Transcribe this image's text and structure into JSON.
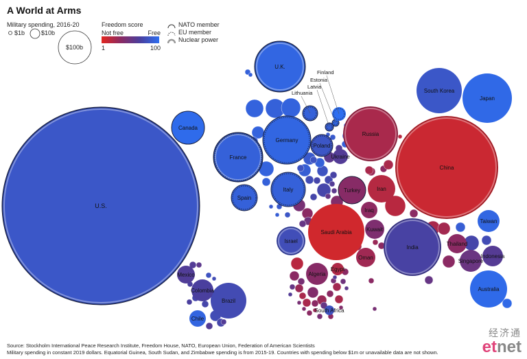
{
  "title": "A World at Arms",
  "legend": {
    "size_title": "Military spending, 2016-20",
    "size_labels": [
      "$1b",
      "$10b",
      "$100b"
    ],
    "freedom_title": "Freedom score",
    "freedom_low": "Not free",
    "freedom_high": "Free",
    "freedom_min": "1",
    "freedom_max": "100",
    "markers": [
      "NATO member",
      "EU member",
      "Nuclear power"
    ]
  },
  "colors": {
    "not_free": "#e2271f",
    "free": "#2d6ef0"
  },
  "chart_data": {
    "type": "bubble",
    "title": "A World at Arms",
    "size_measure": "Military spending, 2016-20 (constant 2019 dollars)",
    "color_measure": "Freedom score (1 = Not free, 100 = Free)",
    "countries": [
      {
        "name": "U.S.",
        "spending_b": 3600,
        "freedom": 83,
        "nato": true,
        "nuclear": true
      },
      {
        "name": "China",
        "spending_b": 1200,
        "freedom": 9,
        "nuclear": true
      },
      {
        "name": "India",
        "spending_b": 340,
        "freedom": 67,
        "nuclear": true
      },
      {
        "name": "Russia",
        "spending_b": 320,
        "freedom": 20,
        "nuclear": true
      },
      {
        "name": "Saudi Arabia",
        "spending_b": 320,
        "freedom": 7
      },
      {
        "name": "U.K.",
        "spending_b": 270,
        "freedom": 94,
        "nato": true,
        "nuclear": true
      },
      {
        "name": "Germany",
        "spending_b": 240,
        "freedom": 94,
        "nato": true,
        "eu": true
      },
      {
        "name": "France",
        "spending_b": 260,
        "freedom": 90,
        "nato": true,
        "eu": true,
        "nuclear": true
      },
      {
        "name": "Japan",
        "spending_b": 240,
        "freedom": 96
      },
      {
        "name": "South Korea",
        "spending_b": 210,
        "freedom": 83
      },
      {
        "name": "Italy",
        "spending_b": 130,
        "freedom": 90,
        "nato": true,
        "eu": true
      },
      {
        "name": "Australia",
        "spending_b": 130,
        "freedom": 97
      },
      {
        "name": "Brazil",
        "spending_b": 130,
        "freedom": 74
      },
      {
        "name": "Canada",
        "spending_b": 105,
        "freedom": 98,
        "nato": true
      },
      {
        "name": "Israel",
        "spending_b": 100,
        "freedom": 76,
        "nuclear": true
      },
      {
        "name": "Turkey",
        "spending_b": 90,
        "freedom": 32,
        "nato": true
      },
      {
        "name": "Spain",
        "spending_b": 75,
        "freedom": 90,
        "nato": true,
        "eu": true
      },
      {
        "name": "Iran",
        "spending_b": 75,
        "freedom": 16
      },
      {
        "name": "Indonesia",
        "spending_b": 40,
        "freedom": 59
      },
      {
        "name": "Poland",
        "spending_b": 55,
        "freedom": 82,
        "nato": true,
        "eu": true
      },
      {
        "name": "Singapore",
        "spending_b": 55,
        "freedom": 48
      },
      {
        "name": "Algeria",
        "spending_b": 50,
        "freedom": 32
      },
      {
        "name": "Colombia",
        "spending_b": 50,
        "freedom": 65
      },
      {
        "name": "Kuwait",
        "spending_b": 35,
        "freedom": 37
      },
      {
        "name": "Oman",
        "spending_b": 35,
        "freedom": 23
      },
      {
        "name": "Thailand",
        "spending_b": 35,
        "freedom": 30
      },
      {
        "name": "Iraq",
        "spending_b": 30,
        "freedom": 29
      },
      {
        "name": "Taiwan",
        "spending_b": 55,
        "freedom": 94
      },
      {
        "name": "Mexico",
        "spending_b": 30,
        "freedom": 61
      },
      {
        "name": "Ukraine",
        "spending_b": 25,
        "freedom": 60
      },
      {
        "name": "Chile",
        "spending_b": 25,
        "freedom": 93
      },
      {
        "name": "Egypt",
        "spending_b": 20,
        "freedom": 18
      },
      {
        "name": "South Africa",
        "spending_b": 17,
        "freedom": 79
      },
      {
        "name": "Lithuania",
        "spending_b": 5,
        "freedom": 90,
        "nato": true,
        "eu": true
      },
      {
        "name": "Latvia",
        "spending_b": 3,
        "freedom": 89,
        "nato": true,
        "eu": true
      },
      {
        "name": "Estonia",
        "spending_b": 3,
        "freedom": 94,
        "nato": true,
        "eu": true
      },
      {
        "name": "Finland",
        "spending_b": 17,
        "freedom": 100,
        "eu": true
      }
    ]
  },
  "footer": {
    "source": "Source: Stockholm International Peace Research Institute, Freedom House, NATO, European Union, Federation of American Scientists",
    "note": "Military spending in constant 2019 dollars. Equatorial Guinea, South Sudan, and Zimbabwe spending is from 2015-19. Countries with spending below $1m or unavailable data are not shown."
  },
  "brand": {
    "chinese": "经济通",
    "latin_prefix": "et",
    "latin_suffix": "net"
  }
}
